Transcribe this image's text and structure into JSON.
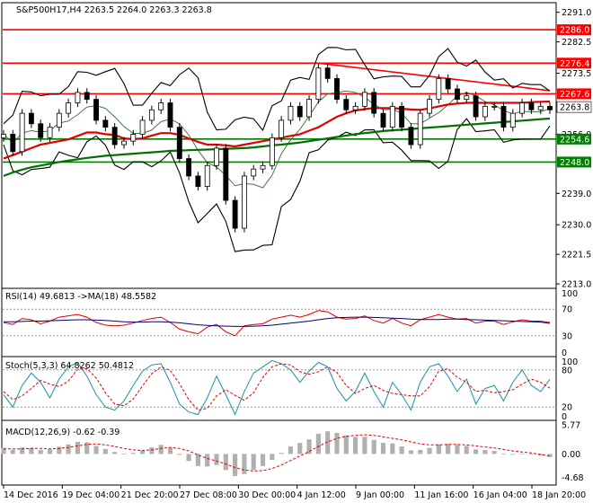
{
  "chart_data": {
    "type": "candlestick",
    "symbol_header": "S&P500H17,H4  2263.5 2264.0 2263.3 2263.8",
    "main_panel": {
      "ylim": [
        2212.0,
        2293.5
      ],
      "price_ticks": [
        2291.0,
        2282.5,
        2273.5,
        2256.0,
        2239.0,
        2230.0,
        2221.5,
        2213.0
      ],
      "x_labels": [
        "14 Dec 2016",
        "19 Dec 04:00",
        "21 Dec 20:00",
        "27 Dec 08:00",
        "30 Dec 00:00",
        "4 Jan 12:00",
        "9 Jan 00:00",
        "11 Jan 16:00",
        "16 Jan 04:00",
        "18 Jan 20:00"
      ],
      "levels": [
        {
          "value": 2286.0,
          "label": "2286.0",
          "color": "#ff0000"
        },
        {
          "value": 2276.4,
          "label": "2276.4",
          "color": "#ff0000"
        },
        {
          "value": 2267.6,
          "label": "2267.6",
          "color": "#ff0000"
        },
        {
          "value": 2254.6,
          "label": "2254.6",
          "color": "#008000"
        },
        {
          "value": 2248.0,
          "label": "2248.0",
          "color": "#008000"
        }
      ],
      "current_price": {
        "value": 2263.8,
        "label": "2263.8"
      },
      "trendline": {
        "from": 2276.4,
        "to": 2268.5,
        "color": "#ff0000"
      },
      "close_path": [
        2256,
        2251,
        2262,
        2259,
        2255,
        2258,
        2262,
        2265,
        2268,
        2266,
        2260,
        2258,
        2253,
        2254,
        2256,
        2260,
        2263,
        2265,
        2258,
        2249,
        2244,
        2241,
        2247,
        2252,
        2237,
        2229,
        2244,
        2246,
        2247,
        2255,
        2260,
        2264,
        2261,
        2266,
        2275,
        2272,
        2266,
        2263,
        2264,
        2268,
        2262,
        2258,
        2264,
        2258,
        2253,
        2262,
        2266,
        2272,
        2269,
        2266,
        2267,
        2261,
        2264,
        2264,
        2258,
        2262,
        2265,
        2263,
        2264,
        2263
      ],
      "ma_red_path": [
        2249,
        2250,
        2251,
        2252,
        2253,
        2253.5,
        2254,
        2254.5,
        2255.5,
        2256.5,
        2256.5,
        2256,
        2255.8,
        2254.8,
        2254.6,
        2254.8,
        2255.6,
        2256.3,
        2256.3,
        2255.8,
        2254.8,
        2253.8,
        2253,
        2253,
        2252.8,
        2252.5,
        2253,
        2253.5,
        2254,
        2254.5,
        2255,
        2255.5,
        2256,
        2257,
        2258,
        2259.5,
        2261,
        2262,
        2262.8,
        2263.2,
        2263.5,
        2263.5,
        2263.5,
        2263.3,
        2263.1,
        2263,
        2263.4,
        2264,
        2264.5,
        2264.8,
        2265,
        2265,
        2265,
        2265,
        2265,
        2265,
        2265,
        2265.2,
        2265.3,
        2265.4
      ],
      "ma_green_path": [
        2244,
        2245,
        2245.8,
        2246.5,
        2247,
        2247.5,
        2248,
        2248.4,
        2248.8,
        2249.2,
        2249.5,
        2249.8,
        2250,
        2250.2,
        2250.4,
        2250.6,
        2250.8,
        2251,
        2251.2,
        2251.3,
        2251.4,
        2251.5,
        2251.6,
        2251.7,
        2251.8,
        2251.9,
        2252,
        2252.2,
        2252.5,
        2252.8,
        2253,
        2253.3,
        2253.6,
        2254,
        2254.4,
        2254.8,
        2255.2,
        2255.6,
        2256,
        2256.3,
        2256.6,
        2256.9,
        2257.1,
        2257.3,
        2257.5,
        2257.7,
        2257.9,
        2258.1,
        2258.3,
        2258.5,
        2258.7,
        2258.9,
        2259.1,
        2259.3,
        2259.5,
        2259.7,
        2259.9,
        2260.1,
        2260.3,
        2260.5
      ]
    },
    "rsi_panel": {
      "header": "RSI(14) 49.6813  ->MA(18) 48.5582",
      "ylim": [
        0,
        100
      ],
      "ticks": [
        100,
        70,
        30,
        0
      ],
      "rsi_path": [
        50,
        47,
        56,
        54,
        48,
        52,
        58,
        60,
        62,
        58,
        50,
        46,
        45,
        46,
        49,
        53,
        56,
        58,
        50,
        40,
        36,
        33,
        43,
        47,
        36,
        30,
        45,
        47,
        48,
        55,
        58,
        61,
        58,
        62,
        68,
        66,
        58,
        55,
        56,
        60,
        53,
        49,
        56,
        49,
        45,
        54,
        58,
        62,
        58,
        55,
        56,
        49,
        52,
        52,
        47,
        51,
        54,
        52,
        52,
        50
      ],
      "ma_path": [
        51,
        51,
        51.5,
        52,
        52,
        52.5,
        53,
        53.5,
        54,
        54,
        53.5,
        53,
        52,
        51,
        50.5,
        50.5,
        51,
        51,
        50.5,
        49.5,
        48,
        46.5,
        45.5,
        45,
        44.5,
        44,
        44,
        44.5,
        45,
        46,
        47.5,
        49,
        50.5,
        52,
        54,
        56,
        57,
        57.5,
        58,
        58,
        57.5,
        57,
        56.5,
        56,
        55,
        54.5,
        54.5,
        54.5,
        55,
        55,
        54.5,
        54,
        53.5,
        53,
        52.5,
        52,
        51.5,
        51,
        50.5,
        48.6
      ]
    },
    "stoch_panel": {
      "header": "Stoch(5,3,3) 64.8262 50.4812",
      "ylim": [
        0,
        100
      ],
      "ticks": [
        100,
        80,
        20,
        0
      ],
      "k_path": [
        40,
        20,
        55,
        75,
        60,
        35,
        65,
        85,
        92,
        70,
        40,
        20,
        15,
        30,
        55,
        78,
        88,
        90,
        60,
        25,
        12,
        8,
        35,
        70,
        40,
        8,
        45,
        75,
        85,
        95,
        90,
        80,
        60,
        78,
        92,
        85,
        50,
        30,
        45,
        75,
        45,
        20,
        60,
        40,
        15,
        60,
        85,
        90,
        70,
        45,
        65,
        25,
        50,
        55,
        30,
        60,
        80,
        55,
        45,
        64.8
      ],
      "d_path": [
        45,
        32,
        38,
        50,
        63,
        57,
        53,
        62,
        81,
        82,
        67,
        43,
        25,
        22,
        33,
        54,
        74,
        85,
        79,
        58,
        32,
        15,
        18,
        38,
        48,
        39,
        31,
        43,
        68,
        85,
        90,
        88,
        77,
        73,
        77,
        85,
        76,
        55,
        42,
        50,
        55,
        47,
        42,
        40,
        38,
        38,
        53,
        78,
        82,
        68,
        60,
        45,
        47,
        43,
        45,
        48,
        57,
        65,
        60,
        50.5
      ]
    },
    "macd_panel": {
      "header": "MACD(12,26,9) -0.62 -0.39",
      "ylim": [
        -6.0,
        6.5
      ],
      "ticks": [
        5.77,
        0.0,
        -4.68
      ],
      "hist": [
        1.2,
        0.8,
        1.3,
        1.2,
        0.8,
        0.9,
        1.4,
        1.9,
        2.4,
        2.3,
        1.6,
        1.0,
        0.4,
        0.1,
        0.2,
        0.7,
        1.3,
        1.8,
        1.2,
        -0.2,
        -1.4,
        -2.4,
        -2.5,
        -2.2,
        -3.2,
        -4.4,
        -4.0,
        -3.2,
        -2.4,
        -1.2,
        0.2,
        1.5,
        2.2,
        2.9,
        4.0,
        4.5,
        4.2,
        3.7,
        3.4,
        3.4,
        2.8,
        2.2,
        2.1,
        1.5,
        0.7,
        0.8,
        1.2,
        1.9,
        2.0,
        1.8,
        1.6,
        0.9,
        0.8,
        0.6,
        0.1,
        0.0,
        0.1,
        -0.1,
        -0.3,
        -0.62
      ],
      "signal": [
        1.0,
        1.0,
        1.0,
        1.1,
        1.1,
        1.0,
        1.1,
        1.3,
        1.6,
        1.9,
        2.0,
        1.8,
        1.5,
        1.1,
        0.8,
        0.7,
        0.8,
        1.1,
        1.3,
        1.1,
        0.6,
        -0.2,
        -0.9,
        -1.4,
        -2.0,
        -2.7,
        -3.2,
        -3.4,
        -3.3,
        -2.9,
        -2.2,
        -1.3,
        -0.4,
        0.5,
        1.5,
        2.4,
        3.1,
        3.5,
        3.7,
        3.8,
        3.7,
        3.4,
        3.1,
        2.8,
        2.4,
        2.0,
        1.8,
        1.8,
        1.9,
        1.9,
        1.8,
        1.6,
        1.4,
        1.2,
        0.9,
        0.6,
        0.4,
        0.2,
        -0.1,
        -0.39
      ]
    }
  }
}
